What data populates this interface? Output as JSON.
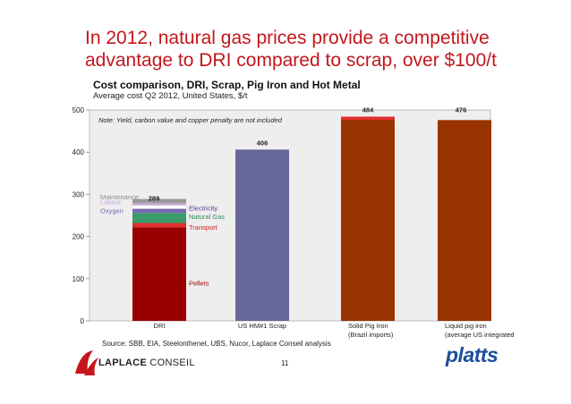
{
  "headline": "In 2012, natural gas prices provide a competitive advantage to DRI compared to scrap, over $100/t",
  "chart_data": {
    "type": "bar",
    "title": "Cost comparison, DRI, Scrap, Pig Iron and Hot Metal",
    "subtitle": "Average cost Q2 2012, United States, $/t",
    "note": "Note: Yield, carbon value and copper penalty are not included",
    "ylim": [
      0,
      500
    ],
    "yticks": [
      0,
      100,
      200,
      300,
      400,
      500
    ],
    "categories": [
      {
        "label": "DRI",
        "label2": ""
      },
      {
        "label": "US HM#1 Scrap",
        "label2": ""
      },
      {
        "label": "Solid Pig Iron",
        "label2": "(Brazil imports)"
      },
      {
        "label": "Liquid pig iron",
        "label2": "(average US integrated"
      }
    ],
    "totals": [
      289,
      406,
      484,
      476
    ],
    "stacked_dri": [
      {
        "name": "Pellets",
        "value": 222,
        "color": "#990000",
        "label_side": "right"
      },
      {
        "name": "Transport",
        "value": 10,
        "color": "#e03030",
        "label_side": "right"
      },
      {
        "name": "Natural Gas",
        "value": 24,
        "color": "#3a9a6a",
        "label_side": "right"
      },
      {
        "name": "Electricity",
        "value": 10,
        "color": "#7a66b0",
        "label_side": "right"
      },
      {
        "name": "Oxygen",
        "value": 8,
        "color": "#ffffff",
        "label_side": "left"
      },
      {
        "name": "Labour",
        "value": 5,
        "color": "#c8a8d8",
        "label_side": "left"
      },
      {
        "name": "Maintenance",
        "value": 10,
        "color": "#9a9a9a",
        "label_side": "left"
      }
    ],
    "single_bars": [
      {
        "index": 1,
        "value": 406,
        "color": "#66669a"
      },
      {
        "index": 2,
        "value": 484,
        "color": "#993300",
        "top_band": 8,
        "top_color": "#e03030"
      },
      {
        "index": 3,
        "value": 476,
        "color": "#993300"
      }
    ],
    "label_colors": {
      "Pellets": "#990000",
      "Transport": "#d02020",
      "Natural Gas": "#2e8a5a",
      "Electricity": "#5a3a9a",
      "Oxygen": "#7a66b0",
      "Labour": "#c8a8d8",
      "Maintenance": "#8a8a8a"
    },
    "source": "Source: SBB, EIA, Steelonthenet, UBS, Nucor, Laplace Conseil analysis"
  },
  "footer": {
    "page_number": "11",
    "left_logo_text_a": "LAPLACE",
    "left_logo_text_b": "CONSEIL",
    "right_logo_text": "platts"
  }
}
